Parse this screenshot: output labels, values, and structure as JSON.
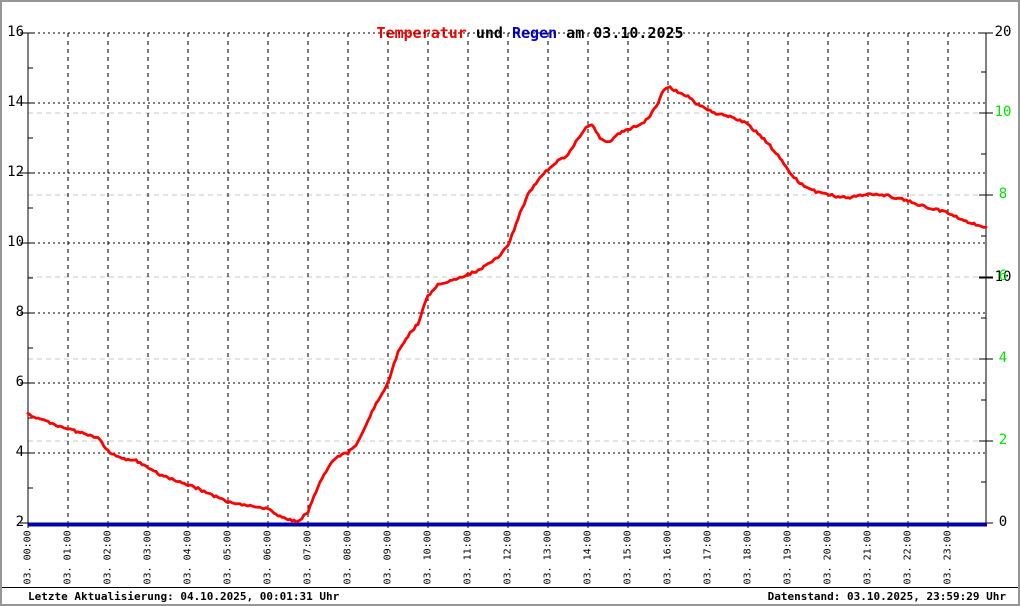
{
  "title": {
    "full": "Temperatur und Regen am 03.10.2025",
    "parts": [
      {
        "text": "Temperatur",
        "color": "#ff0000"
      },
      {
        "text": " und ",
        "color": "#000000"
      },
      {
        "text": "Regen",
        "color": "#0000cc"
      },
      {
        "text": " am 03.10.2025",
        "color": "#000000"
      }
    ]
  },
  "footer": {
    "left": "Letzte Aktualisierung: 04.10.2025, 00:01:31 Uhr",
    "right": "Datenstand: 03.10.2025, 23:59:29 Uhr"
  },
  "colors": {
    "temperature_line": "#ff0000",
    "rain_line": "#0000aa",
    "green_axis_label": "#00e400",
    "gray_gridline": "#c9c9c9",
    "black": "#000000",
    "background": "#ffffff"
  },
  "chart_data": {
    "type": "line",
    "title": "Temperatur und Regen am 03.10.2025",
    "grid": true,
    "legend_position": "none",
    "x_axis": {
      "range_hours": [
        0,
        24
      ],
      "tick_labels": [
        "03. 00:00",
        "03. 01:00",
        "03. 02:00",
        "03. 03:00",
        "03. 04:00",
        "03. 05:00",
        "03. 06:00",
        "03. 07:00",
        "03. 08:00",
        "03. 09:00",
        "03. 10:00",
        "03. 11:00",
        "03. 12:00",
        "03. 13:00",
        "03. 14:00",
        "03. 15:00",
        "03. 16:00",
        "03. 17:00",
        "03. 18:00",
        "03. 19:00",
        "03. 20:00",
        "03. 21:00",
        "03. 22:00",
        "03. 23:00"
      ]
    },
    "y_axis_left": {
      "series": "Temperatur",
      "range": [
        2,
        16
      ],
      "ticks": [
        16,
        14,
        12,
        10,
        8,
        6,
        4,
        2
      ],
      "color": "#000000"
    },
    "y_axis_right_black": {
      "range": [
        0,
        20
      ],
      "ticks": [
        20,
        10,
        0
      ],
      "color": "#000000"
    },
    "y_axis_right_green": {
      "range": [
        0,
        12
      ],
      "ticks": [
        10,
        8,
        6,
        4,
        2
      ],
      "color": "#00e400"
    },
    "series": [
      {
        "name": "Temperatur",
        "color": "#ff0000",
        "axis": "left",
        "points": [
          [
            0,
            5.1
          ],
          [
            0.25,
            5.0
          ],
          [
            0.5,
            4.88
          ],
          [
            0.75,
            4.78
          ],
          [
            1,
            4.7
          ],
          [
            1.25,
            4.6
          ],
          [
            1.5,
            4.52
          ],
          [
            1.75,
            4.42
          ],
          [
            2,
            4.05
          ],
          [
            2.25,
            3.9
          ],
          [
            2.5,
            3.8
          ],
          [
            2.7,
            3.78
          ],
          [
            3,
            3.6
          ],
          [
            3.25,
            3.42
          ],
          [
            3.5,
            3.28
          ],
          [
            3.75,
            3.2
          ],
          [
            4,
            3.1
          ],
          [
            4.25,
            2.98
          ],
          [
            4.5,
            2.85
          ],
          [
            4.75,
            2.72
          ],
          [
            5,
            2.6
          ],
          [
            5.25,
            2.55
          ],
          [
            5.5,
            2.5
          ],
          [
            5.75,
            2.45
          ],
          [
            6,
            2.4
          ],
          [
            6.25,
            2.2
          ],
          [
            6.5,
            2.1
          ],
          [
            6.75,
            2.05
          ],
          [
            7,
            2.3
          ],
          [
            7.25,
            3.05
          ],
          [
            7.5,
            3.6
          ],
          [
            7.75,
            3.9
          ],
          [
            8,
            4.0
          ],
          [
            8.25,
            4.3
          ],
          [
            8.5,
            4.95
          ],
          [
            8.75,
            5.5
          ],
          [
            9,
            6.0
          ],
          [
            9.25,
            6.9
          ],
          [
            9.5,
            7.35
          ],
          [
            9.75,
            7.7
          ],
          [
            10,
            8.5
          ],
          [
            10.25,
            8.8
          ],
          [
            10.5,
            8.9
          ],
          [
            10.75,
            9.0
          ],
          [
            11,
            9.1
          ],
          [
            11.25,
            9.2
          ],
          [
            11.5,
            9.4
          ],
          [
            11.75,
            9.6
          ],
          [
            12,
            9.9
          ],
          [
            12.25,
            10.7
          ],
          [
            12.5,
            11.4
          ],
          [
            12.75,
            11.8
          ],
          [
            13,
            12.1
          ],
          [
            13.25,
            12.35
          ],
          [
            13.5,
            12.5
          ],
          [
            13.75,
            13.0
          ],
          [
            14,
            13.35
          ],
          [
            14.1,
            13.4
          ],
          [
            14.3,
            13.0
          ],
          [
            14.5,
            12.88
          ],
          [
            14.75,
            13.1
          ],
          [
            15,
            13.25
          ],
          [
            15.25,
            13.35
          ],
          [
            15.5,
            13.55
          ],
          [
            15.75,
            14.0
          ],
          [
            15.9,
            14.4
          ],
          [
            16.05,
            14.45
          ],
          [
            16.25,
            14.32
          ],
          [
            16.5,
            14.18
          ],
          [
            16.75,
            13.95
          ],
          [
            17,
            13.82
          ],
          [
            17.25,
            13.68
          ],
          [
            17.5,
            13.62
          ],
          [
            17.75,
            13.52
          ],
          [
            18,
            13.4
          ],
          [
            18.25,
            13.12
          ],
          [
            18.5,
            12.85
          ],
          [
            18.75,
            12.5
          ],
          [
            19,
            12.1
          ],
          [
            19.25,
            11.75
          ],
          [
            19.5,
            11.55
          ],
          [
            19.75,
            11.45
          ],
          [
            20,
            11.4
          ],
          [
            20.25,
            11.32
          ],
          [
            20.5,
            11.3
          ],
          [
            20.75,
            11.35
          ],
          [
            21,
            11.4
          ],
          [
            21.25,
            11.4
          ],
          [
            21.5,
            11.35
          ],
          [
            21.75,
            11.28
          ],
          [
            22,
            11.2
          ],
          [
            22.25,
            11.1
          ],
          [
            22.5,
            11.02
          ],
          [
            22.75,
            10.95
          ],
          [
            23,
            10.85
          ],
          [
            23.25,
            10.72
          ],
          [
            23.5,
            10.6
          ],
          [
            23.75,
            10.5
          ],
          [
            23.98,
            10.45
          ]
        ]
      },
      {
        "name": "Regen",
        "color": "#0000aa",
        "axis": "right",
        "points": [
          [
            0,
            0
          ],
          [
            23.98,
            0
          ]
        ]
      }
    ]
  }
}
